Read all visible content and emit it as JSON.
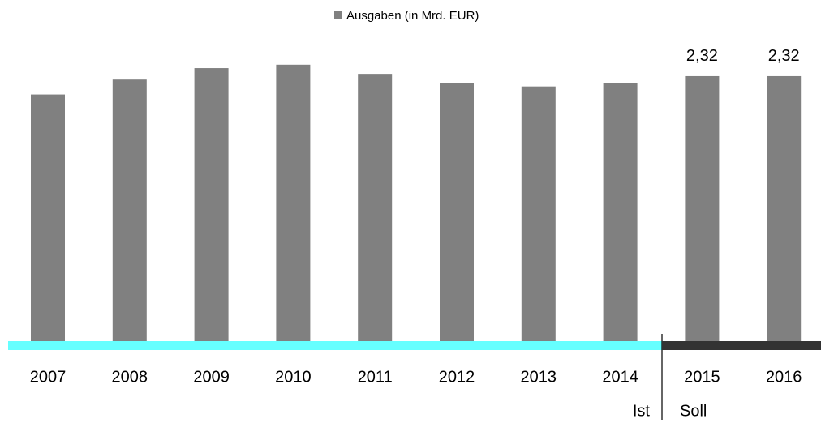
{
  "chart_data": {
    "type": "bar",
    "categories": [
      "2007",
      "2008",
      "2009",
      "2010",
      "2011",
      "2012",
      "2013",
      "2014",
      "2015",
      "2016"
    ],
    "series": [
      {
        "name": "Ausgaben (in Mrd. EUR)",
        "color": "#808080",
        "values": [
          2.16,
          2.29,
          2.39,
          2.42,
          2.34,
          2.26,
          2.23,
          2.26,
          2.32,
          2.32
        ],
        "value_labels": [
          null,
          null,
          null,
          null,
          null,
          null,
          null,
          null,
          "2,32",
          "2,32"
        ]
      }
    ],
    "ylim": [
      0,
      2.5
    ],
    "periods": [
      {
        "label": "Ist",
        "color": "#66ffff",
        "from": "2007",
        "to": "2014"
      },
      {
        "label": "Soll",
        "color": "#333333",
        "from": "2015",
        "to": "2016"
      }
    ]
  }
}
